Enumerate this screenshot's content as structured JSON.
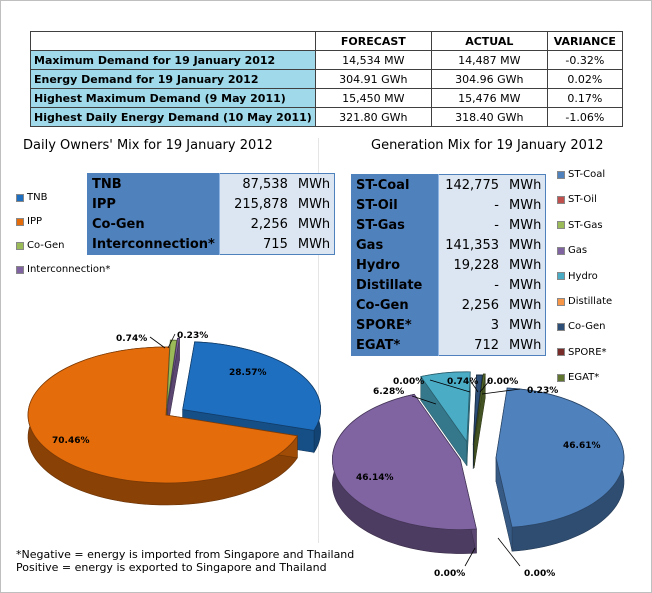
{
  "summary": {
    "headers": [
      "",
      "FORECAST",
      "ACTUAL",
      "VARIANCE"
    ],
    "rows": [
      {
        "label": "Maximum Demand for 19 January 2012",
        "forecast": "14,534  MW",
        "actual": "14,487  MW",
        "variance": "-0.32%"
      },
      {
        "label": "Energy Demand for 19 January 2012",
        "forecast": "304.91  GWh",
        "actual": "304.96  GWh",
        "variance": "0.02%"
      },
      {
        "label": "Highest Maximum Demand (9 May 2011)",
        "forecast": "15,450  MW",
        "actual": "15,476  MW",
        "variance": "0.17%"
      },
      {
        "label": "Highest Daily Energy Demand (10 May 2011)",
        "forecast": "321.80  GWh",
        "actual": "318.40  GWh",
        "variance": "-1.06%"
      }
    ]
  },
  "owners": {
    "title": "Daily Owners' Mix for 19 January 2012",
    "table": [
      {
        "name": "TNB",
        "value": "87,538",
        "unit": "MWh"
      },
      {
        "name": "IPP",
        "value": "215,878",
        "unit": "MWh"
      },
      {
        "name": "Co-Gen",
        "value": "2,256",
        "unit": "MWh"
      },
      {
        "name": "Interconnection*",
        "value": "715",
        "unit": "MWh"
      }
    ],
    "legend": [
      "TNB",
      "IPP",
      "Co-Gen",
      "Interconnection*"
    ]
  },
  "generation": {
    "title": "Generation Mix for 19 January 2012",
    "table": [
      {
        "name": "ST-Coal",
        "value": "142,775",
        "unit": "MWh"
      },
      {
        "name": "ST-Oil",
        "value": "-",
        "unit": "MWh"
      },
      {
        "name": "ST-Gas",
        "value": "-",
        "unit": "MWh"
      },
      {
        "name": "Gas",
        "value": "141,353",
        "unit": "MWh"
      },
      {
        "name": "Hydro",
        "value": "19,228",
        "unit": "MWh"
      },
      {
        "name": "Distillate",
        "value": "-",
        "unit": "MWh"
      },
      {
        "name": "Co-Gen",
        "value": "2,256",
        "unit": "MWh"
      },
      {
        "name": "SPORE*",
        "value": "3",
        "unit": "MWh"
      },
      {
        "name": "EGAT*",
        "value": "712",
        "unit": "MWh"
      }
    ],
    "legend": [
      "ST-Coal",
      "ST-Oil",
      "ST-Gas",
      "Gas",
      "Hydro",
      "Distillate",
      "Co-Gen",
      "SPORE*",
      "EGAT*"
    ]
  },
  "footnote": {
    "line1": "*Negative = energy is imported from Singapore and Thailand",
    "line2": " Positive = energy is exported to Singapore and Thailand"
  },
  "chart_data": [
    {
      "type": "pie",
      "title": "Daily Owners' Mix for 19 January 2012",
      "categories": [
        "TNB",
        "IPP",
        "Co-Gen",
        "Interconnection*"
      ],
      "values": [
        28.57,
        70.46,
        0.74,
        0.23
      ],
      "labels": [
        "28.57%",
        "70.46%",
        "0.74%",
        "0.23%"
      ],
      "colors": [
        "#1f6fc0",
        "#e46c0a",
        "#9bbb59",
        "#8064a2"
      ],
      "legend_position": "left"
    },
    {
      "type": "pie",
      "title": "Generation Mix for 19 January 2012",
      "categories": [
        "ST-Coal",
        "ST-Oil",
        "ST-Gas",
        "Gas",
        "Hydro",
        "Distillate",
        "Co-Gen",
        "SPORE*",
        "EGAT*"
      ],
      "values": [
        46.61,
        0.0,
        0.0,
        46.14,
        6.28,
        0.0,
        0.74,
        0.0,
        0.23
      ],
      "labels": [
        "46.61%",
        "0.00%",
        "0.00%",
        "46.14%",
        "6.28%",
        "0.00%",
        "0.74%",
        "0.00%",
        "0.23%"
      ],
      "colors": [
        "#4f81bd",
        "#c0504d",
        "#9bbb59",
        "#8064a2",
        "#4bacc6",
        "#f79646",
        "#2c4d75",
        "#772c2a",
        "#5f7530"
      ],
      "legend_position": "right"
    }
  ]
}
